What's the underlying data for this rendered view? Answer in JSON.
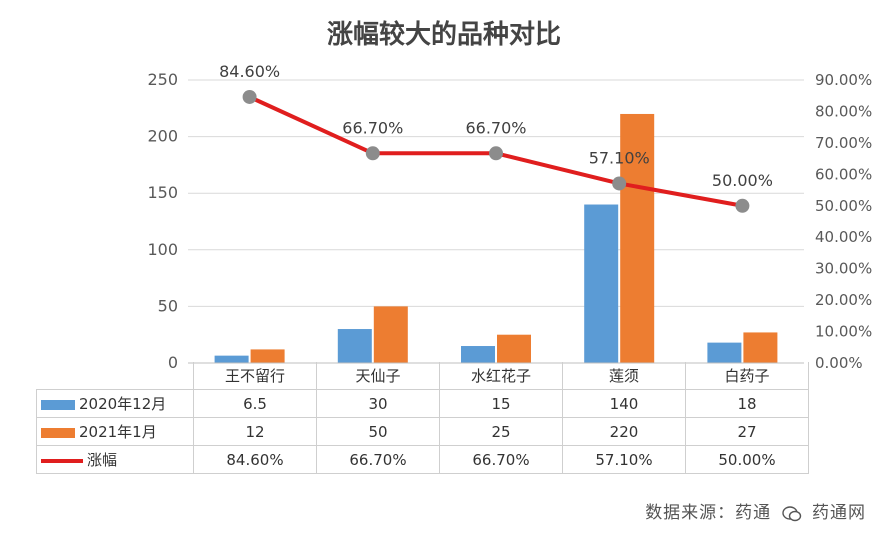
{
  "chart_data": {
    "type": "bar",
    "title": "涨幅较大的品种对比",
    "categories": [
      "王不留行",
      "天仙子",
      "水红花子",
      "莲须",
      "白药子"
    ],
    "series": [
      {
        "name": "2020年12月",
        "kind": "bar",
        "axis": "left",
        "color": "#5b9bd5",
        "values": [
          6.5,
          30,
          15,
          140,
          18
        ],
        "display": [
          "6.5",
          "30",
          "15",
          "140",
          "18"
        ]
      },
      {
        "name": "2021年1月",
        "kind": "bar",
        "axis": "left",
        "color": "#ed7d31",
        "values": [
          12,
          50,
          25,
          220,
          27
        ],
        "display": [
          "12",
          "50",
          "25",
          "220",
          "27"
        ]
      },
      {
        "name": "涨幅",
        "kind": "line",
        "axis": "right",
        "color": "#e01e1e",
        "marker_color": "#8c8c8c",
        "values": [
          84.6,
          66.7,
          66.7,
          57.1,
          50.0
        ],
        "display": [
          "84.60%",
          "66.70%",
          "66.70%",
          "57.10%",
          "50.00%"
        ]
      }
    ],
    "y_left": {
      "range": [
        0,
        250
      ],
      "ticks": [
        "0",
        "50",
        "100",
        "150",
        "200",
        "250"
      ]
    },
    "y_right": {
      "range": [
        0,
        90
      ],
      "ticks": [
        "0.00%",
        "10.00%",
        "20.00%",
        "30.00%",
        "40.00%",
        "50.00%",
        "60.00%",
        "70.00%",
        "80.00%",
        "90.00%"
      ]
    },
    "grid": true,
    "legend": "data-table"
  },
  "source": "数据来源：药通",
  "watermark": "药通网"
}
